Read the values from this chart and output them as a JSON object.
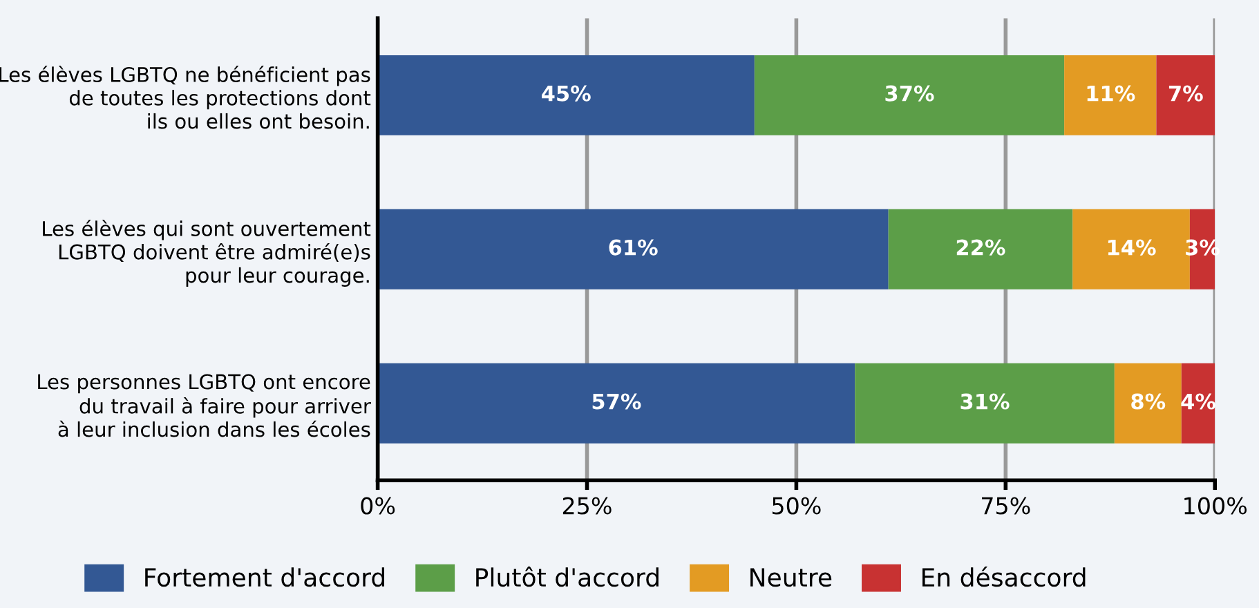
{
  "chart_data": {
    "type": "bar",
    "orientation": "horizontal",
    "stacked": true,
    "categories": [
      "Les élèves LGBTQ ne bénéficient pas\nde toutes les protections dont\nils ou elles ont besoin.",
      "Les élèves qui sont ouvertement\nLGBTQ doivent être admiré(e)s\npour leur courage.",
      "Les personnes LGBTQ ont encore\ndu travail à faire pour arriver\nà leur inclusion dans les écoles"
    ],
    "series": [
      {
        "name": "Fortement d'accord",
        "color": "#335894",
        "values": [
          45,
          61,
          57
        ],
        "value_labels": [
          "45%",
          "61%",
          "57%"
        ]
      },
      {
        "name": "Plutôt d'accord",
        "color": "#5c9e48",
        "values": [
          37,
          22,
          31
        ],
        "value_labels": [
          "37%",
          "22%",
          "31%"
        ]
      },
      {
        "name": "Neutre",
        "color": "#e39b23",
        "values": [
          11,
          14,
          8
        ],
        "value_labels": [
          "11%",
          "14%",
          "8%"
        ]
      },
      {
        "name": "En désaccord",
        "color": "#c83232",
        "values": [
          7,
          3,
          4
        ],
        "value_labels": [
          "7%",
          "3%",
          "4%"
        ]
      }
    ],
    "xlim": [
      0,
      100
    ],
    "xticks": [
      {
        "value": 0,
        "label": "0%"
      },
      {
        "value": 25,
        "label": "25%"
      },
      {
        "value": 50,
        "label": "50%"
      },
      {
        "value": 75,
        "label": "75%"
      },
      {
        "value": 100,
        "label": "100%"
      }
    ],
    "grid": "x",
    "legend": "bottom"
  }
}
